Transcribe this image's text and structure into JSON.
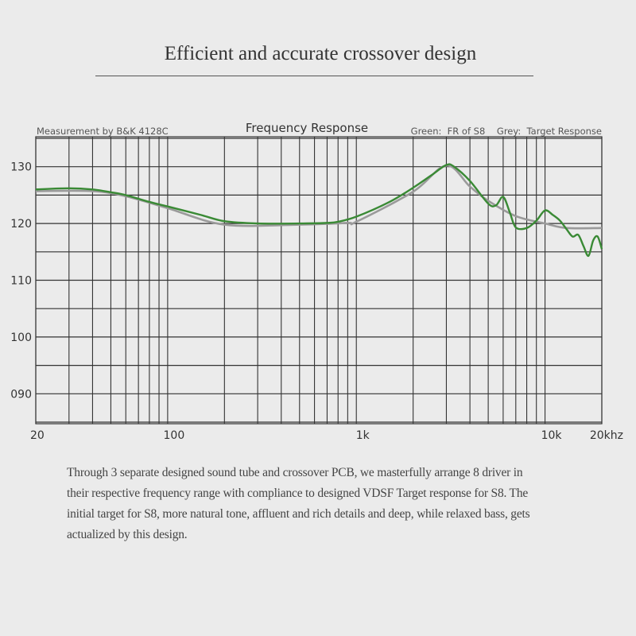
{
  "heading": "Efficient and accurate crossover design",
  "description_lines": [
    "Through 3 separate designed sound tube and crossover PCB, we masterfully arrange 8 driver in",
    "their respective frequency range with compliance to designed VDSF Target response for S8. The",
    "initial target for S8, more natural tone, affluent and rich details and deep, while relaxed bass, gets",
    "actualized by this design."
  ],
  "chart_data": {
    "type": "line",
    "title": "Frequency Response",
    "subtitle_left": "Measurement by B&K 4128C",
    "legend_text": "Green:  FR of S8    Grey:  Target Response",
    "legend_placement": "top-right",
    "x_scale": "log",
    "xlim": [
      20,
      20000
    ],
    "ylim": [
      85,
      135
    ],
    "grid": true,
    "x_ticks": [
      {
        "value": 20,
        "label": "20"
      },
      {
        "value": 100,
        "label": "100"
      },
      {
        "value": 1000,
        "label": "1k"
      },
      {
        "value": 10000,
        "label": "10k"
      },
      {
        "value": 20000,
        "label": "20khz"
      }
    ],
    "y_ticks": [
      {
        "value": 130,
        "label": "130"
      },
      {
        "value": 120,
        "label": "120"
      },
      {
        "value": 110,
        "label": "110"
      },
      {
        "value": 100,
        "label": "100"
      },
      {
        "value": 90,
        "label": "090"
      }
    ],
    "series": [
      {
        "name": "Target Response",
        "color": "#9a9a9a",
        "x": [
          20,
          40,
          60,
          100,
          200,
          500,
          900,
          1000,
          2000,
          3000,
          4000,
          5000,
          7000,
          10000,
          13000,
          20000
        ],
        "y": [
          125.7,
          125.7,
          124.8,
          122.7,
          119.8,
          119.8,
          120.1,
          120.3,
          125.6,
          130.2,
          126.5,
          124,
          121.3,
          120,
          119.2,
          119.2
        ]
      },
      {
        "name": "FR of S8",
        "color": "#3a8a35",
        "x": [
          20,
          30,
          40,
          50,
          60,
          80,
          100,
          150,
          200,
          300,
          500,
          700,
          800,
          1000,
          1500,
          2000,
          2500,
          3000,
          3300,
          4000,
          5000,
          5500,
          6000,
          6500,
          7000,
          8000,
          9000,
          10000,
          11000,
          12000,
          13000,
          14000,
          15000,
          16000,
          17000,
          18000,
          19000,
          20000
        ],
        "y": [
          126,
          126.2,
          126,
          125.5,
          125,
          123.8,
          123,
          121.5,
          120.4,
          120,
          120,
          120.1,
          120.3,
          121.2,
          123.8,
          126.3,
          128.5,
          130.3,
          130,
          127.5,
          123.5,
          123.2,
          124.7,
          122,
          119.3,
          119.2,
          120.5,
          122.3,
          121.5,
          120.5,
          119,
          117.7,
          118,
          116,
          114.3,
          117,
          117.7,
          115.5
        ]
      }
    ]
  }
}
